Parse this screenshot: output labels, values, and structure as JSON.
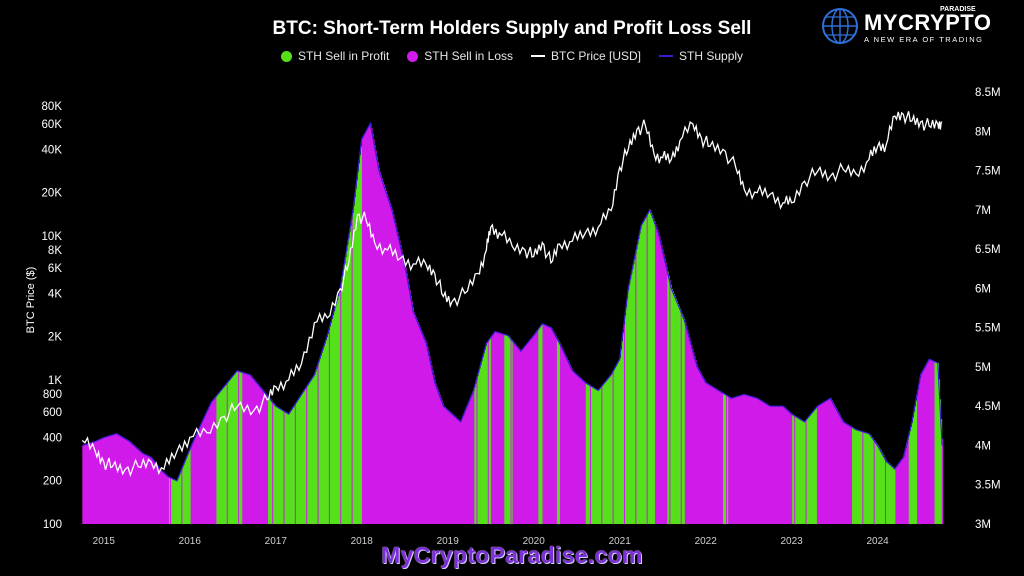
{
  "title": "BTC: Short-Term Holders Supply and Profit Loss Sell",
  "legend": {
    "profit": "STH Sell in Profit",
    "loss": "STH Sell in Loss",
    "price": "BTC Price [USD]",
    "supply": "STH Supply"
  },
  "logo": {
    "brand": "MYCRYPTO",
    "paradise": "PARADISE",
    "tagline": "A NEW ERA OF TRADING"
  },
  "watermark": "MyCryptoParadise.com",
  "colors": {
    "profit": "#55e01a",
    "loss": "#d01bea",
    "price": "#ffffff",
    "supply": "#3a1bd8",
    "background": "#000000"
  },
  "chart_data": {
    "type": "area",
    "title": "BTC: Short-Term Holders Supply and Profit Loss Sell",
    "ylabel_left": "BTC Price ($)",
    "ylabel_right": "",
    "y_left_scale": "log",
    "y_left_range": [
      100,
      100000
    ],
    "y_left_ticks": [
      "80K",
      "60K",
      "40K",
      "20K",
      "10K",
      "8K",
      "6K",
      "4K",
      "2K",
      "1K",
      "800",
      "600",
      "400",
      "200",
      "100"
    ],
    "y_left_tick_values": [
      80000,
      60000,
      40000,
      20000,
      10000,
      8000,
      6000,
      4000,
      2000,
      1000,
      800,
      600,
      400,
      200,
      100
    ],
    "y_right_range": [
      3000000,
      8500000
    ],
    "y_right_ticks": [
      "8.5M",
      "8M",
      "7.5M",
      "7M",
      "6.5M",
      "6M",
      "5.5M",
      "5M",
      "4.5M",
      "4M",
      "3.5M",
      "3M"
    ],
    "y_right_tick_values": [
      8500000,
      8000000,
      7500000,
      7000000,
      6500000,
      6000000,
      5500000,
      5000000,
      4500000,
      4000000,
      3500000,
      3000000
    ],
    "x_range": [
      2014.7,
      2024.9
    ],
    "x_ticks": [
      "2015",
      "2016",
      "2017",
      "2018",
      "2019",
      "2020",
      "2021",
      "2022",
      "2023",
      "2024"
    ],
    "x_tick_values": [
      2015,
      2016,
      2017,
      2018,
      2019,
      2020,
      2021,
      2022,
      2023,
      2024
    ],
    "legend_position": "top-center",
    "grid": false,
    "series": [
      {
        "name": "STH Supply",
        "axis": "right",
        "x": [
          2014.75,
          2014.9,
          2015.0,
          2015.15,
          2015.3,
          2015.45,
          2015.55,
          2015.65,
          2015.75,
          2015.85,
          2016.0,
          2016.1,
          2016.25,
          2016.4,
          2016.55,
          2016.7,
          2016.85,
          2017.0,
          2017.15,
          2017.3,
          2017.45,
          2017.6,
          2017.75,
          2017.9,
          2018.0,
          2018.1,
          2018.2,
          2018.35,
          2018.5,
          2018.6,
          2018.75,
          2018.85,
          2018.95,
          2019.05,
          2019.15,
          2019.3,
          2019.45,
          2019.55,
          2019.7,
          2019.85,
          2020.0,
          2020.1,
          2020.2,
          2020.3,
          2020.45,
          2020.6,
          2020.75,
          2020.9,
          2021.0,
          2021.1,
          2021.25,
          2021.35,
          2021.45,
          2021.6,
          2021.75,
          2021.9,
          2022.0,
          2022.15,
          2022.3,
          2022.45,
          2022.6,
          2022.75,
          2022.9,
          2023.0,
          2023.15,
          2023.3,
          2023.45,
          2023.6,
          2023.75,
          2023.9,
          2024.0,
          2024.1,
          2024.2,
          2024.3,
          2024.4,
          2024.5,
          2024.6,
          2024.7,
          2024.75
        ],
        "y": [
          4000000,
          4050000,
          4100000,
          4150000,
          4050000,
          3900000,
          3850000,
          3700000,
          3600000,
          3550000,
          3950000,
          4200000,
          4550000,
          4750000,
          4950000,
          4900000,
          4700000,
          4500000,
          4400000,
          4650000,
          4900000,
          5400000,
          6000000,
          7000000,
          7900000,
          8100000,
          7500000,
          7000000,
          6300000,
          5700000,
          5300000,
          4800000,
          4500000,
          4400000,
          4300000,
          4700000,
          5300000,
          5450000,
          5400000,
          5200000,
          5400000,
          5550000,
          5500000,
          5300000,
          4950000,
          4800000,
          4700000,
          4900000,
          5100000,
          6000000,
          6800000,
          7000000,
          6700000,
          6000000,
          5600000,
          5000000,
          4800000,
          4700000,
          4600000,
          4650000,
          4600000,
          4500000,
          4500000,
          4400000,
          4300000,
          4500000,
          4600000,
          4300000,
          4200000,
          4150000,
          4000000,
          3800000,
          3700000,
          3850000,
          4300000,
          4900000,
          5100000,
          5050000,
          4000000
        ]
      },
      {
        "name": "BTC Price [USD]",
        "axis": "left",
        "x": [
          2014.75,
          2014.9,
          2015.0,
          2015.1,
          2015.25,
          2015.4,
          2015.55,
          2015.7,
          2015.85,
          2016.0,
          2016.2,
          2016.4,
          2016.55,
          2016.75,
          2016.9,
          2017.0,
          2017.15,
          2017.3,
          2017.45,
          2017.6,
          2017.75,
          2017.85,
          2017.95,
          2018.05,
          2018.15,
          2018.3,
          2018.45,
          2018.6,
          2018.75,
          2018.85,
          2018.95,
          2019.05,
          2019.2,
          2019.35,
          2019.45,
          2019.5,
          2019.6,
          2019.75,
          2019.9,
          2020.0,
          2020.1,
          2020.2,
          2020.3,
          2020.45,
          2020.6,
          2020.75,
          2020.9,
          2021.0,
          2021.1,
          2021.2,
          2021.3,
          2021.4,
          2021.5,
          2021.6,
          2021.7,
          2021.85,
          2021.95,
          2022.05,
          2022.2,
          2022.35,
          2022.45,
          2022.6,
          2022.75,
          2022.9,
          2023.0,
          2023.15,
          2023.3,
          2023.45,
          2023.6,
          2023.75,
          2023.9,
          2024.0,
          2024.1,
          2024.2,
          2024.3,
          2024.4,
          2024.5,
          2024.6,
          2024.7,
          2024.75
        ],
        "y": [
          380,
          320,
          270,
          250,
          240,
          250,
          270,
          240,
          320,
          400,
          430,
          560,
          650,
          620,
          730,
          900,
          1000,
          1300,
          2500,
          2700,
          4300,
          6500,
          14000,
          13000,
          9000,
          8000,
          7000,
          6400,
          6300,
          5500,
          3800,
          3500,
          4000,
          5500,
          8000,
          11500,
          10500,
          8500,
          8000,
          7200,
          9000,
          6500,
          8800,
          9200,
          10500,
          11500,
          15000,
          30000,
          40000,
          55000,
          58000,
          37000,
          35000,
          34000,
          46000,
          60000,
          48000,
          42000,
          40000,
          30000,
          21000,
          20000,
          19500,
          17000,
          17000,
          24000,
          28000,
          26000,
          29000,
          27000,
          34000,
          42000,
          43000,
          68000,
          70000,
          63000,
          62000,
          58000,
          60000,
          62000
        ]
      },
      {
        "name": "STH Sell in Profit",
        "axis": "right",
        "note_periods_profit": [
          [
            2015.75,
            2016.0
          ],
          [
            2016.3,
            2016.6
          ],
          [
            2016.9,
            2018.0
          ],
          [
            2019.3,
            2019.5
          ],
          [
            2019.65,
            2019.75
          ],
          [
            2020.05,
            2020.1
          ],
          [
            2020.25,
            2020.3
          ],
          [
            2020.6,
            2021.4
          ],
          [
            2021.55,
            2021.75
          ],
          [
            2022.2,
            2022.25
          ],
          [
            2023.0,
            2023.3
          ],
          [
            2023.7,
            2024.2
          ],
          [
            2024.35,
            2024.45
          ],
          [
            2024.65,
            2024.75
          ]
        ]
      },
      {
        "name": "STH Sell in Loss",
        "axis": "right"
      }
    ]
  }
}
